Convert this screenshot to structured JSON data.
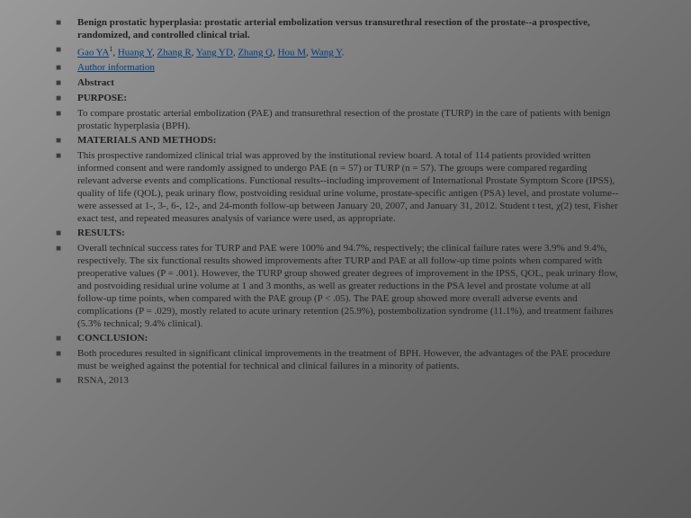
{
  "title": "Benign prostatic hyperplasia: prostatic arterial embolization versus transurethral resection of the prostate--a prospective, randomized, and controlled clinical trial.",
  "authors": {
    "a1": "Gao YA",
    "sup": "1",
    "a2": "Huang Y",
    "a3": "Zhang R",
    "a4": "Yang YD",
    "a5": "Zhang Q",
    "a6": "Hou M",
    "a7": "Wang Y"
  },
  "authorInfo": "Author information",
  "abstract": "Abstract",
  "purposeHdr": "PURPOSE:",
  "purposeBody": "To compare prostatic arterial embolization (PAE) and transurethral resection of the prostate (TURP) in the care of patients with benign prostatic hyperplasia (BPH).",
  "methodsHdr": "MATERIALS AND METHODS:",
  "methodsBody": "This prospective randomized clinical trial was approved by the institutional review board. A total of 114 patients provided written informed consent and were randomly assigned to undergo PAE (n = 57) or TURP (n = 57). The groups were compared regarding relevant adverse events and complications. Functional results--including improvement of International Prostate Symptom Score (IPSS), quality of life (QOL), peak urinary flow, postvoiding residual urine volume, prostate-specific antigen (PSA) level, and prostate volume--were assessed at 1-, 3-, 6-, 12-, and 24-month follow-up between January 20, 2007, and January 31, 2012. Student t test, χ(2) test, Fisher exact test, and repeated measures analysis of variance were used, as appropriate.",
  "resultsHdr": "RESULTS:",
  "resultsBody": "Overall technical success rates for TURP and PAE were 100% and 94.7%, respectively; the clinical failure rates were 3.9% and 9.4%, respectively. The six functional results showed improvements after TURP and PAE at all follow-up time points when compared with preoperative values (P = .001). However, the TURP group showed greater degrees of improvement in the IPSS, QOL, peak urinary flow, and postvoiding residual urine volume at 1 and 3 months, as well as greater reductions in the PSA level and prostate volume at all follow-up time points, when compared with the PAE group (P < .05). The PAE group showed more overall adverse events and complications (P = .029), mostly related to acute urinary retention (25.9%), postembolization syndrome (11.1%), and treatment failures (5.3% technical; 9.4% clinical).",
  "conclusionHdr": "CONCLUSION:",
  "conclusionBody": "Both procedures resulted in significant clinical improvements in the treatment of BPH. However, the advantages of the PAE procedure must be weighed against the potential for technical and clinical failures in a minority of patients.",
  "footer": "RSNA, 2013"
}
